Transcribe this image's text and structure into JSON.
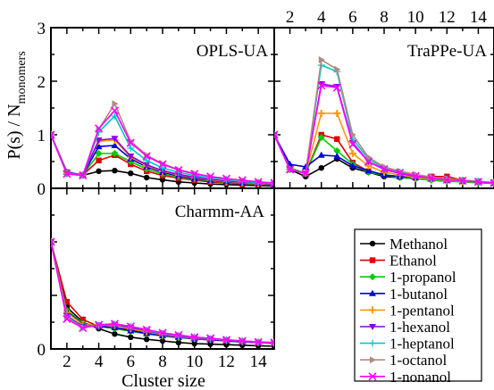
{
  "figure": {
    "ylabel_main": "P(s) / N",
    "ylabel_sub": "monomers",
    "xlabel": "Cluster size"
  },
  "series_styles": [
    {
      "name": "Methanol",
      "color": "#000000",
      "marker": "circle"
    },
    {
      "name": "Ethanol",
      "color": "#e00000",
      "marker": "square"
    },
    {
      "name": "1-propanol",
      "color": "#00cc00",
      "marker": "diamond"
    },
    {
      "name": "1-butanol",
      "color": "#0000e0",
      "marker": "triangle-up"
    },
    {
      "name": "1-pentanol",
      "color": "#ff9900",
      "marker": "plus"
    },
    {
      "name": "1-hexanol",
      "color": "#8a00e6",
      "marker": "triangle-down"
    },
    {
      "name": "1-heptanol",
      "color": "#00c8c8",
      "marker": "plus-thin"
    },
    {
      "name": "1-octanol",
      "color": "#b08a80",
      "marker": "triangle-right"
    },
    {
      "name": "1-nonanol",
      "color": "#ff00ff",
      "marker": "x"
    }
  ],
  "chart_data": [
    {
      "type": "line",
      "panel": "top-left",
      "title": "OPLS-UA",
      "xlim": [
        1,
        15
      ],
      "ylim": [
        0,
        3
      ],
      "x_ticks": [
        2,
        4,
        6,
        8,
        10,
        12,
        14
      ],
      "x_tick_labels_shown": false,
      "y_ticks": [
        0,
        1,
        2,
        3
      ],
      "x": [
        1,
        2,
        3,
        4,
        5,
        6,
        7,
        8,
        9,
        10,
        11,
        12,
        13,
        14,
        15
      ],
      "series": [
        {
          "name": "Methanol",
          "values": [
            1.0,
            0.28,
            0.24,
            0.32,
            0.33,
            0.28,
            0.2,
            0.16,
            0.12,
            0.1,
            0.08,
            0.07,
            0.06,
            0.05,
            0.04
          ]
        },
        {
          "name": "Ethanol",
          "values": [
            1.0,
            0.3,
            0.25,
            0.52,
            0.62,
            0.45,
            0.32,
            0.24,
            0.19,
            0.15,
            0.12,
            0.1,
            0.08,
            0.07,
            0.06
          ]
        },
        {
          "name": "1-propanol",
          "values": [
            1.0,
            0.3,
            0.25,
            0.65,
            0.65,
            0.5,
            0.36,
            0.27,
            0.21,
            0.17,
            0.14,
            0.11,
            0.09,
            0.08,
            0.06
          ]
        },
        {
          "name": "1-butanol",
          "values": [
            1.0,
            0.3,
            0.25,
            0.78,
            0.8,
            0.55,
            0.4,
            0.3,
            0.23,
            0.18,
            0.15,
            0.12,
            0.1,
            0.09,
            0.07
          ]
        },
        {
          "name": "1-pentanol",
          "values": [
            1.0,
            0.28,
            0.25,
            0.88,
            0.9,
            0.58,
            0.42,
            0.32,
            0.25,
            0.2,
            0.16,
            0.13,
            0.11,
            0.09,
            0.08
          ]
        },
        {
          "name": "1-hexanol",
          "values": [
            1.0,
            0.27,
            0.24,
            0.9,
            0.93,
            0.6,
            0.44,
            0.33,
            0.26,
            0.21,
            0.17,
            0.14,
            0.12,
            0.1,
            0.08
          ]
        },
        {
          "name": "1-heptanol",
          "values": [
            1.0,
            0.27,
            0.24,
            1.05,
            1.35,
            0.75,
            0.52,
            0.38,
            0.3,
            0.24,
            0.19,
            0.16,
            0.13,
            0.11,
            0.09
          ]
        },
        {
          "name": "1-octanol",
          "values": [
            1.0,
            0.27,
            0.24,
            1.1,
            1.58,
            0.88,
            0.62,
            0.46,
            0.35,
            0.28,
            0.22,
            0.18,
            0.15,
            0.12,
            0.1
          ]
        },
        {
          "name": "1-nonanol",
          "values": [
            1.0,
            0.27,
            0.24,
            1.12,
            1.45,
            0.85,
            0.6,
            0.45,
            0.34,
            0.27,
            0.22,
            0.18,
            0.15,
            0.12,
            0.1
          ]
        }
      ]
    },
    {
      "type": "line",
      "panel": "top-right",
      "title": "TraPPe-UA",
      "xlim": [
        1,
        15
      ],
      "ylim": [
        0,
        3
      ],
      "x_ticks": [
        2,
        4,
        6,
        8,
        10,
        12,
        14
      ],
      "x_tick_labels_shown": true,
      "x_tick_labels_position": "top",
      "y_ticks": [
        0,
        1,
        2,
        3
      ],
      "x": [
        1,
        2,
        3,
        4,
        5,
        6,
        7,
        8,
        9,
        10,
        11,
        12,
        13,
        14,
        15
      ],
      "series": [
        {
          "name": "Methanol",
          "values": [
            1.0,
            0.35,
            0.22,
            0.38,
            0.55,
            0.38,
            0.3,
            0.22,
            0.2,
            0.18,
            0.17,
            0.15,
            0.13,
            0.12,
            0.1
          ]
        },
        {
          "name": "Ethanol",
          "values": [
            1.0,
            0.38,
            0.28,
            1.0,
            0.92,
            0.48,
            0.32,
            0.25,
            0.22,
            0.22,
            0.22,
            0.22,
            0.15,
            0.13,
            0.1
          ]
        },
        {
          "name": "1-propanol",
          "values": [
            1.0,
            0.38,
            0.28,
            0.95,
            0.7,
            0.45,
            0.3,
            0.25,
            0.2,
            0.18,
            0.15,
            0.13,
            0.12,
            0.1,
            0.09
          ]
        },
        {
          "name": "1-butanol",
          "values": [
            1.0,
            0.45,
            0.4,
            0.62,
            0.6,
            0.42,
            0.33,
            0.25,
            0.22,
            0.2,
            0.18,
            0.15,
            0.13,
            0.12,
            0.1
          ]
        },
        {
          "name": "1-pentanol",
          "values": [
            1.0,
            0.35,
            0.28,
            1.4,
            1.4,
            0.65,
            0.42,
            0.3,
            0.25,
            0.2,
            0.18,
            0.15,
            0.13,
            0.12,
            0.1
          ]
        },
        {
          "name": "1-hexanol",
          "values": [
            1.0,
            0.35,
            0.28,
            1.95,
            1.9,
            0.85,
            0.5,
            0.35,
            0.28,
            0.22,
            0.2,
            0.17,
            0.15,
            0.12,
            0.1
          ]
        },
        {
          "name": "1-heptanol",
          "values": [
            1.0,
            0.35,
            0.28,
            2.3,
            2.18,
            0.92,
            0.55,
            0.38,
            0.3,
            0.24,
            0.2,
            0.17,
            0.15,
            0.13,
            0.11
          ]
        },
        {
          "name": "1-octanol",
          "values": [
            1.0,
            0.35,
            0.28,
            2.4,
            2.22,
            1.0,
            0.58,
            0.4,
            0.32,
            0.26,
            0.21,
            0.18,
            0.15,
            0.13,
            0.11
          ]
        },
        {
          "name": "1-nonanol",
          "values": [
            1.0,
            0.35,
            0.28,
            1.92,
            1.88,
            0.82,
            0.5,
            0.36,
            0.29,
            0.23,
            0.19,
            0.16,
            0.14,
            0.12,
            0.1
          ]
        }
      ]
    },
    {
      "type": "line",
      "panel": "bottom-left",
      "title": "Charmm-AA",
      "xlim": [
        1,
        15
      ],
      "ylim": [
        0,
        3
      ],
      "x_ticks": [
        2,
        4,
        6,
        8,
        10,
        12,
        14
      ],
      "x_tick_labels_shown": true,
      "x_tick_labels_position": "bottom",
      "y_ticks": [
        0,
        1,
        2,
        3
      ],
      "x": [
        1,
        2,
        3,
        4,
        5,
        6,
        7,
        8,
        9,
        10,
        11,
        12,
        13,
        14,
        15
      ],
      "series": [
        {
          "name": "Methanol",
          "values": [
            2.0,
            0.78,
            0.5,
            0.38,
            0.28,
            0.22,
            0.18,
            0.15,
            0.12,
            0.1,
            0.09,
            0.08,
            0.07,
            0.06,
            0.05
          ]
        },
        {
          "name": "Ethanol",
          "values": [
            2.0,
            0.88,
            0.55,
            0.42,
            0.4,
            0.36,
            0.3,
            0.26,
            0.22,
            0.2,
            0.18,
            0.16,
            0.14,
            0.12,
            0.11
          ]
        },
        {
          "name": "1-propanol",
          "values": [
            2.0,
            0.72,
            0.48,
            0.42,
            0.38,
            0.33,
            0.28,
            0.24,
            0.21,
            0.19,
            0.17,
            0.15,
            0.13,
            0.12,
            0.1
          ]
        },
        {
          "name": "1-butanol",
          "values": [
            2.0,
            0.7,
            0.46,
            0.42,
            0.4,
            0.34,
            0.29,
            0.25,
            0.22,
            0.19,
            0.17,
            0.15,
            0.13,
            0.12,
            0.11
          ]
        },
        {
          "name": "1-pentanol",
          "values": [
            2.0,
            0.68,
            0.45,
            0.44,
            0.44,
            0.38,
            0.32,
            0.27,
            0.23,
            0.2,
            0.18,
            0.16,
            0.14,
            0.12,
            0.11
          ]
        },
        {
          "name": "1-hexanol",
          "values": [
            2.0,
            0.62,
            0.42,
            0.44,
            0.45,
            0.4,
            0.34,
            0.28,
            0.24,
            0.21,
            0.18,
            0.16,
            0.14,
            0.12,
            0.11
          ]
        },
        {
          "name": "1-heptanol",
          "values": [
            2.0,
            0.6,
            0.4,
            0.44,
            0.46,
            0.42,
            0.35,
            0.29,
            0.25,
            0.22,
            0.19,
            0.17,
            0.15,
            0.13,
            0.12
          ]
        },
        {
          "name": "1-octanol",
          "values": [
            2.0,
            0.58,
            0.4,
            0.45,
            0.47,
            0.42,
            0.36,
            0.3,
            0.26,
            0.22,
            0.2,
            0.17,
            0.15,
            0.13,
            0.12
          ]
        },
        {
          "name": "1-nonanol",
          "values": [
            2.0,
            0.56,
            0.39,
            0.45,
            0.47,
            0.42,
            0.36,
            0.3,
            0.26,
            0.22,
            0.2,
            0.17,
            0.15,
            0.13,
            0.12
          ]
        }
      ]
    }
  ]
}
